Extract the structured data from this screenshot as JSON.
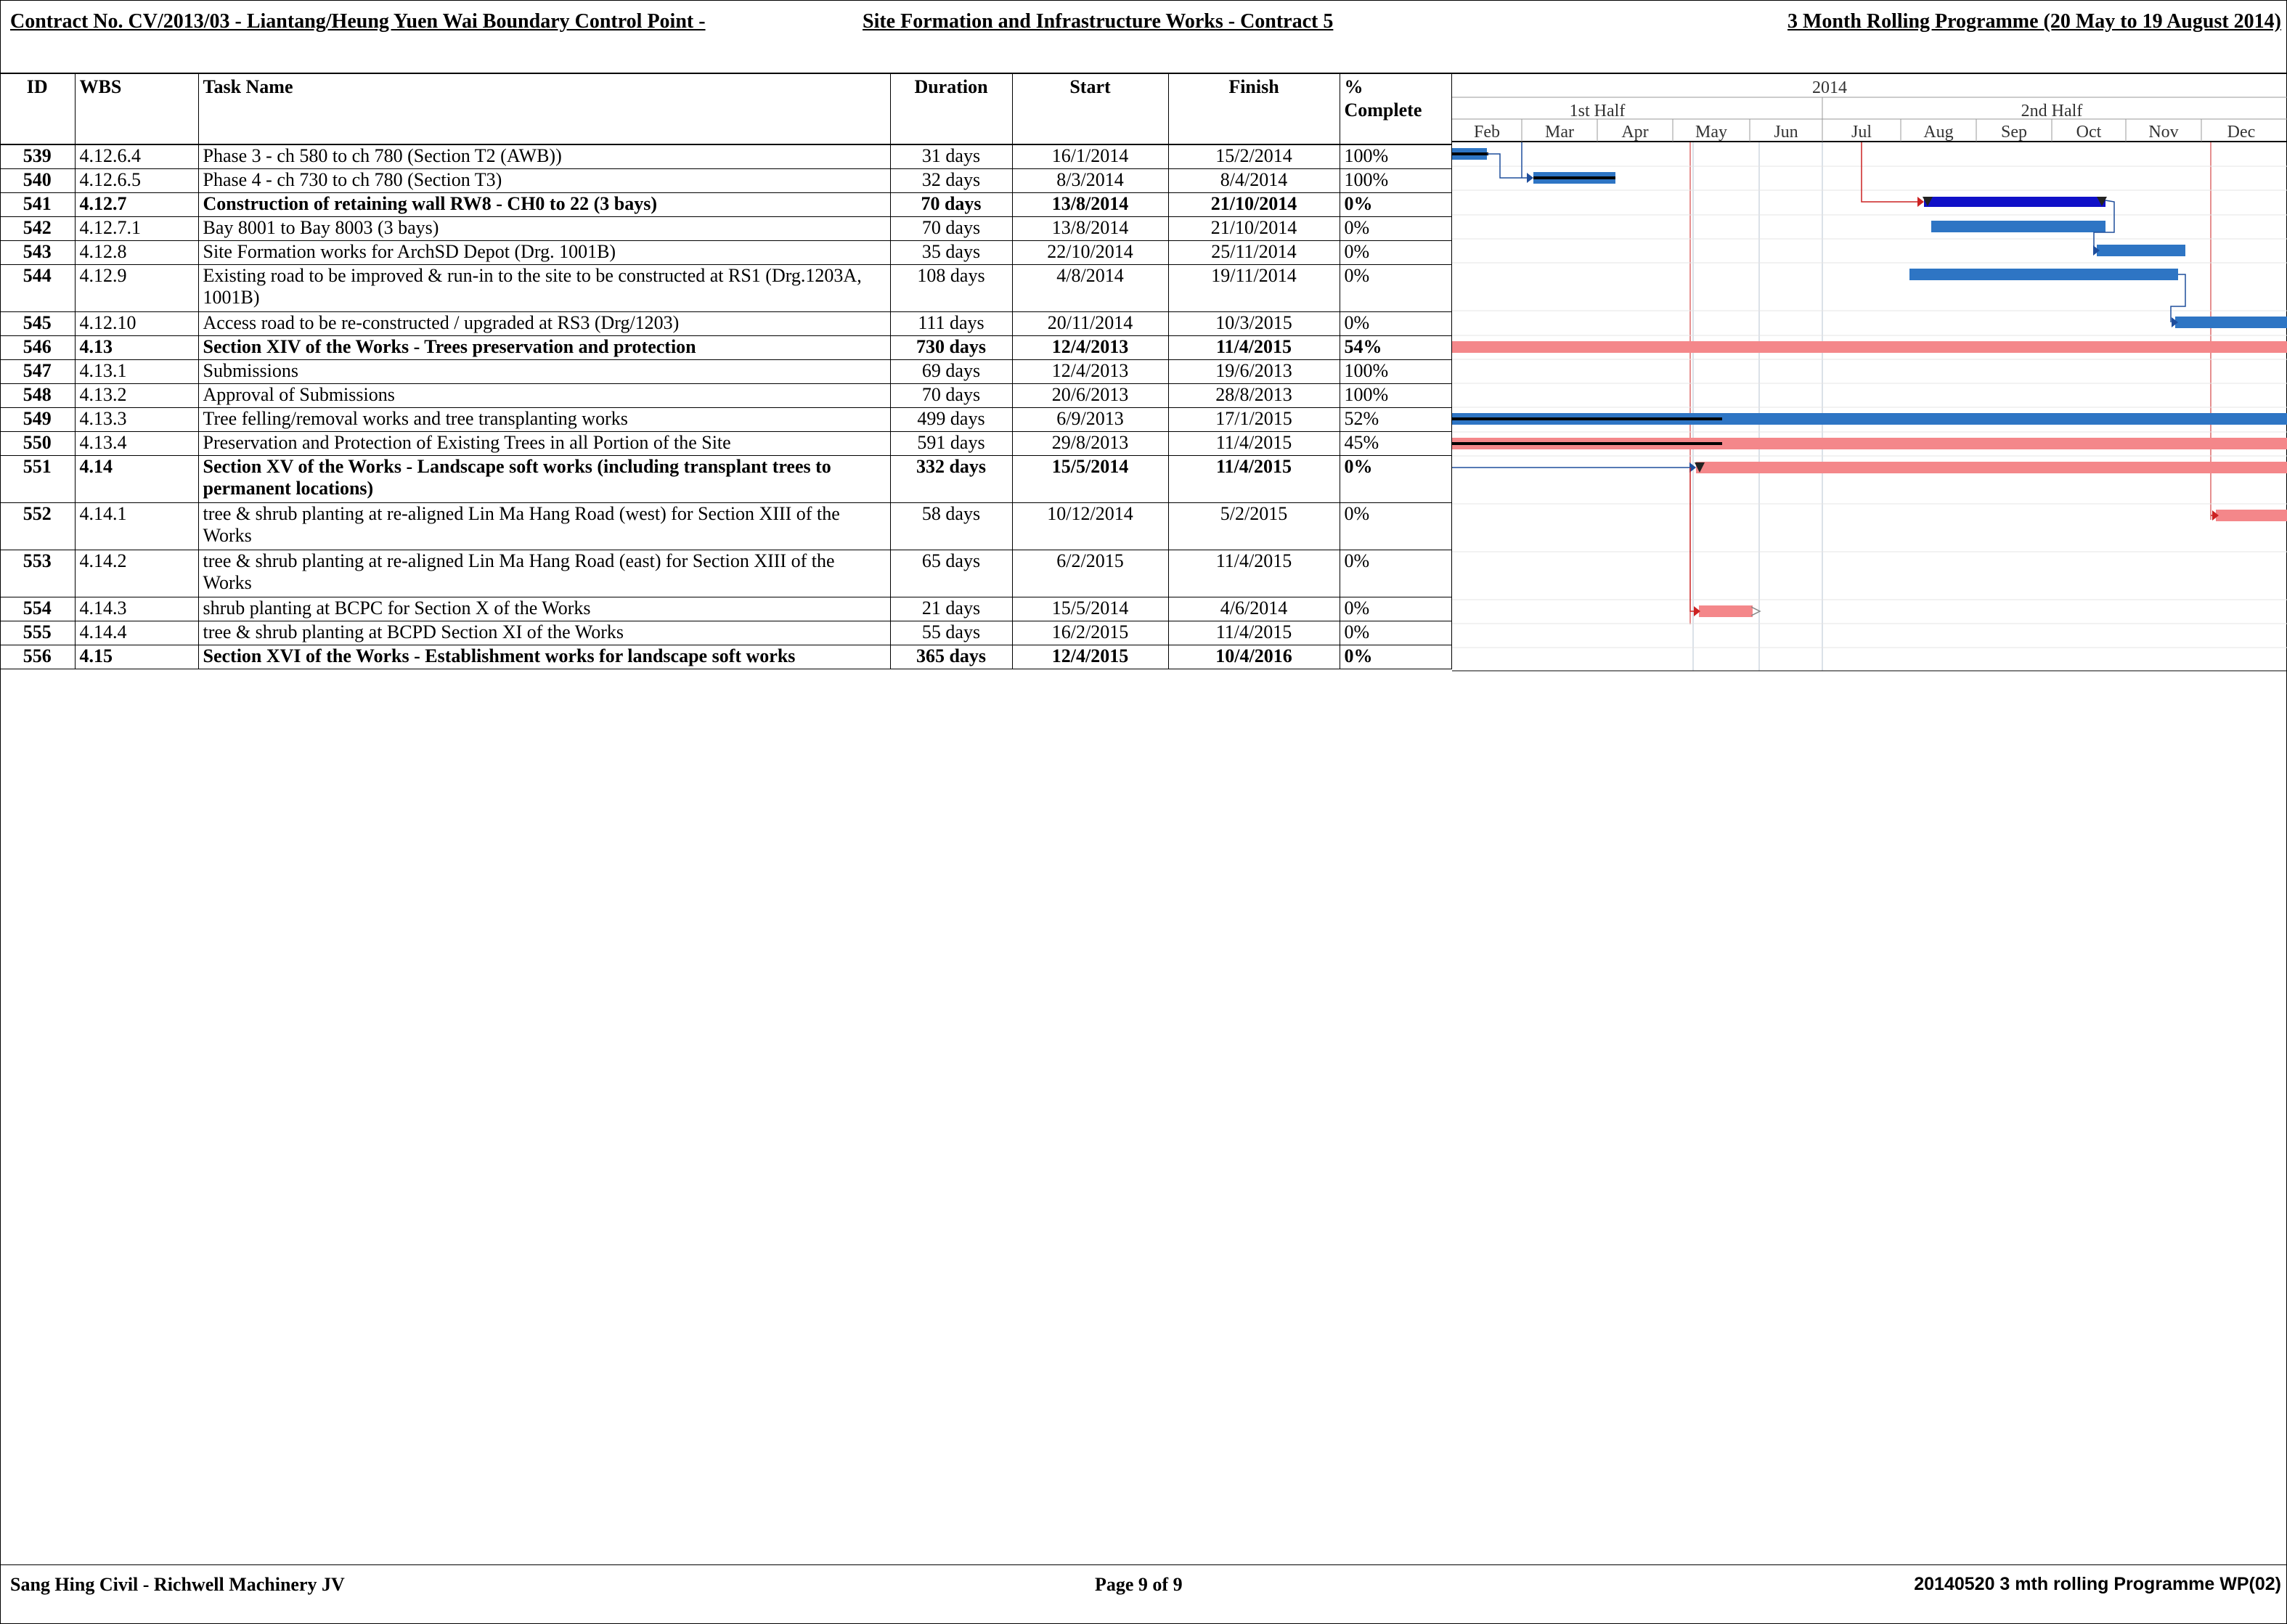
{
  "header": {
    "title_left": "Contract No. CV/2013/03 - Liantang/Heung Yuen Wai Boundary Control Point -",
    "title_mid": "Site Formation and Infrastructure Works - Contract 5",
    "title_right": "3 Month Rolling  Programme (20 May to 19 August 2014)"
  },
  "columns": {
    "id": "ID",
    "wbs": "WBS",
    "task": "Task Name",
    "duration": "Duration",
    "start": "Start",
    "finish": "Finish",
    "complete_1": "%",
    "complete_2": "Complete"
  },
  "timescale": {
    "year": "2014",
    "halves": [
      "1st Half",
      "2nd Half"
    ],
    "months": [
      "Feb",
      "Mar",
      "Apr",
      "May",
      "Jun",
      "Jul",
      "Aug",
      "Sep",
      "Oct",
      "Nov",
      "Dec"
    ]
  },
  "tasks": [
    {
      "id": "539",
      "wbs": "4.12.6.4",
      "name": "Phase 3 - ch 580 to ch 780 (Section T2 (AWB))",
      "duration": "31 days",
      "start": "16/1/2014",
      "finish": "15/2/2014",
      "complete": "100%"
    },
    {
      "id": "540",
      "wbs": "4.12.6.5",
      "name": "Phase 4 - ch 730 to ch 780 (Section T3)",
      "duration": "32 days",
      "start": "8/3/2014",
      "finish": "8/4/2014",
      "complete": "100%"
    },
    {
      "id": "541",
      "wbs": "4.12.7",
      "name": "Construction of retaining wall RW8 - CH0 to 22 (3 bays)",
      "duration": "70 days",
      "start": "13/8/2014",
      "finish": "21/10/2014",
      "complete": "0%"
    },
    {
      "id": "542",
      "wbs": "4.12.7.1",
      "name": "Bay 8001 to Bay 8003 (3 bays)",
      "duration": "70 days",
      "start": "13/8/2014",
      "finish": "21/10/2014",
      "complete": "0%"
    },
    {
      "id": "543",
      "wbs": "4.12.8",
      "name": "Site Formation works for ArchSD Depot (Drg. 1001B)",
      "duration": "35 days",
      "start": "22/10/2014",
      "finish": "25/11/2014",
      "complete": "0%"
    },
    {
      "id": "544",
      "wbs": "4.12.9",
      "name": "Existing road to be improved & run-in to the site to be constructed at RS1 (Drg.1203A, 1001B)",
      "duration": "108 days",
      "start": "4/8/2014",
      "finish": "19/11/2014",
      "complete": "0%"
    },
    {
      "id": "545",
      "wbs": "4.12.10",
      "name": "Access road to be re-constructed / upgraded at RS3 (Drg/1203)",
      "duration": "111 days",
      "start": "20/11/2014",
      "finish": "10/3/2015",
      "complete": "0%"
    },
    {
      "id": "546",
      "wbs": "4.13",
      "name": "Section XIV of the Works - Trees preservation and protection",
      "duration": "730 days",
      "start": "12/4/2013",
      "finish": "11/4/2015",
      "complete": "54%"
    },
    {
      "id": "547",
      "wbs": "4.13.1",
      "name": "Submissions",
      "duration": "69 days",
      "start": "12/4/2013",
      "finish": "19/6/2013",
      "complete": "100%"
    },
    {
      "id": "548",
      "wbs": "4.13.2",
      "name": "Approval of Submissions",
      "duration": "70 days",
      "start": "20/6/2013",
      "finish": "28/8/2013",
      "complete": "100%"
    },
    {
      "id": "549",
      "wbs": "4.13.3",
      "name": " Tree felling/removal works and tree transplanting works",
      "duration": "499 days",
      "start": "6/9/2013",
      "finish": "17/1/2015",
      "complete": "52%"
    },
    {
      "id": "550",
      "wbs": "4.13.4",
      "name": "Preservation and Protection of Existing Trees in all Portion of the Site",
      "duration": "591 days",
      "start": "29/8/2013",
      "finish": "11/4/2015",
      "complete": "45%"
    },
    {
      "id": "551",
      "wbs": "4.14",
      "name": "Section XV of the Works - Landscape soft works (including transplant trees to permanent locations)",
      "duration": "332 days",
      "start": "15/5/2014",
      "finish": "11/4/2015",
      "complete": "0%"
    },
    {
      "id": "552",
      "wbs": "4.14.1",
      "name": "tree & shrub planting  at re-aligned Lin Ma Hang Road (west) for Section XIII of the Works",
      "duration": "58 days",
      "start": "10/12/2014",
      "finish": "5/2/2015",
      "complete": "0%"
    },
    {
      "id": "553",
      "wbs": "4.14.2",
      "name": "tree & shrub planting  at re-aligned Lin Ma Hang Road (east) for Section XIII of the Works",
      "duration": "65 days",
      "start": "6/2/2015",
      "finish": "11/4/2015",
      "complete": "0%"
    },
    {
      "id": "554",
      "wbs": "4.14.3",
      "name": "shrub planting at BCPC for Section X of the Works",
      "duration": "21 days",
      "start": "15/5/2014",
      "finish": "4/6/2014",
      "complete": "0%"
    },
    {
      "id": "555",
      "wbs": "4.14.4",
      "name": "tree & shrub planting at BCPD Section XI of the Works",
      "duration": "55 days",
      "start": "16/2/2015",
      "finish": "11/4/2015",
      "complete": "0%"
    },
    {
      "id": "556",
      "wbs": "4.15",
      "name": "Section XVI of the Works - Establishment works for landscape soft works",
      "duration": "365 days",
      "start": "12/4/2015",
      "finish": "10/4/2016",
      "complete": "0%"
    }
  ],
  "footer": {
    "left": "Sang Hing Civil - Richwell Machinery JV",
    "center": "Page 9 of 9",
    "right": "20140520 3 mth rolling Programme WP(02)"
  },
  "colors": {
    "normal_task": "#2e75c4",
    "summary_task": "#1010c8",
    "critical_task": "#f4878a",
    "progress": "#000000",
    "link": "#1f4e9c",
    "critical_link": "#cc2222"
  }
}
